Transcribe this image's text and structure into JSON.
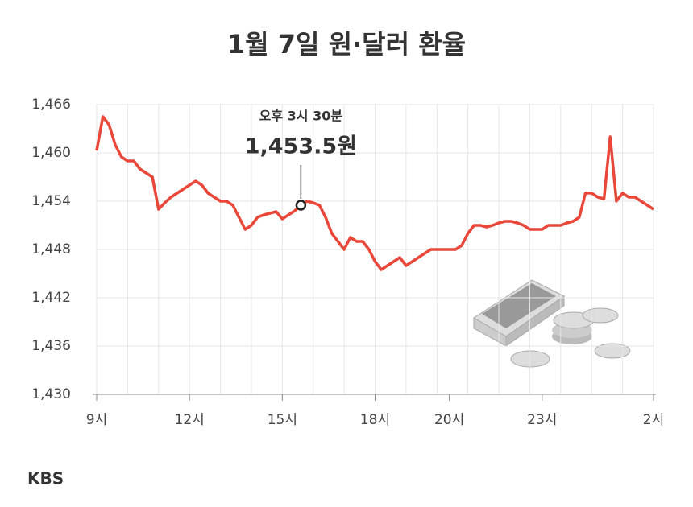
{
  "chart_data": {
    "type": "line",
    "title": "1월 7일 원·달러 환율",
    "categories": [
      "9시",
      null,
      null,
      null,
      null,
      null,
      null,
      null,
      null,
      null,
      null,
      null,
      null,
      null,
      null,
      "12시",
      null,
      null,
      null,
      null,
      null,
      null,
      null,
      null,
      null,
      null,
      null,
      null,
      null,
      null,
      "15시",
      null,
      null,
      null,
      null,
      null,
      null,
      null,
      null,
      null,
      null,
      null,
      null,
      null,
      null,
      "18시",
      null,
      null,
      null,
      null,
      null,
      null,
      null,
      null,
      null,
      null,
      null,
      "20시",
      null,
      null,
      null,
      null,
      null,
      null,
      null,
      null,
      null,
      null,
      null,
      null,
      null,
      null,
      "23시",
      null,
      null,
      null,
      null,
      null,
      null,
      null,
      null,
      null,
      null,
      null,
      null,
      null,
      null,
      null,
      null,
      null,
      "2시"
    ],
    "series": [
      {
        "name": "원·달러 환율",
        "color": "#e8473a",
        "values": [
          1460.3,
          1464.5,
          1463.5,
          1461,
          1459.5,
          1459,
          1459,
          1458,
          1457.5,
          1457,
          1453,
          1453.8,
          1454.5,
          1455,
          1455.5,
          1456,
          1456.5,
          1456,
          1455,
          1454.5,
          1454,
          1454,
          1453.5,
          1452,
          1450.5,
          1451,
          1452,
          1452.3,
          1452.5,
          1452.7,
          1451.8,
          1452.3,
          1452.8,
          1453.5,
          1454,
          1453.8,
          1453.5,
          1452,
          1450,
          1449,
          1448,
          1449.5,
          1449,
          1449,
          1448,
          1446.5,
          1445.5,
          1446,
          1446.5,
          1447,
          1446,
          1446.5,
          1447,
          1447.5,
          1448,
          1448,
          1448,
          1448,
          1448,
          1448.5,
          1450,
          1451,
          1451,
          1450.8,
          1451,
          1451.3,
          1451.5,
          1451.5,
          1451.3,
          1451,
          1450.5,
          1450.5,
          1450.5,
          1451,
          1451,
          1451,
          1451.3,
          1451.5,
          1452,
          1455,
          1455,
          1454.5,
          1454.3,
          1462,
          1454,
          1455,
          1454.5,
          1454.5,
          1454,
          1453.5,
          1453
        ],
        "value_labels": [
          null,
          null,
          null,
          null,
          null,
          null,
          null,
          null,
          null,
          null,
          null,
          null,
          null,
          null,
          null,
          null,
          null,
          null,
          null,
          null,
          null,
          null,
          null,
          null,
          null,
          null,
          null,
          null,
          null,
          null,
          null,
          null,
          null,
          "1,453.5원",
          null,
          null,
          null,
          null,
          null,
          null,
          null,
          null,
          null,
          null,
          null,
          null,
          null,
          null,
          null,
          null,
          null,
          null,
          null,
          null,
          null,
          null,
          null,
          null,
          null,
          null,
          null,
          null,
          null,
          null,
          null,
          null,
          null,
          null,
          null,
          null,
          null,
          null,
          null,
          null,
          null,
          null,
          null,
          null,
          null,
          null,
          null,
          null,
          null,
          null,
          null,
          null,
          null,
          null,
          null,
          null,
          null
        ]
      }
    ],
    "annotation": "오후 3시 30분",
    "ylim": [
      1430,
      1466
    ],
    "yticks": [
      {
        "value": 1430,
        "label": "1,430"
      },
      {
        "value": 1436,
        "label": "1,436"
      },
      {
        "value": 1442,
        "label": "1,442"
      },
      {
        "value": 1448,
        "label": "1,448"
      },
      {
        "value": 1454,
        "label": "1,454"
      },
      {
        "value": 1460,
        "label": "1,460"
      },
      {
        "value": 1466,
        "label": "1,466"
      }
    ],
    "grid": true
  },
  "source": "KBS"
}
